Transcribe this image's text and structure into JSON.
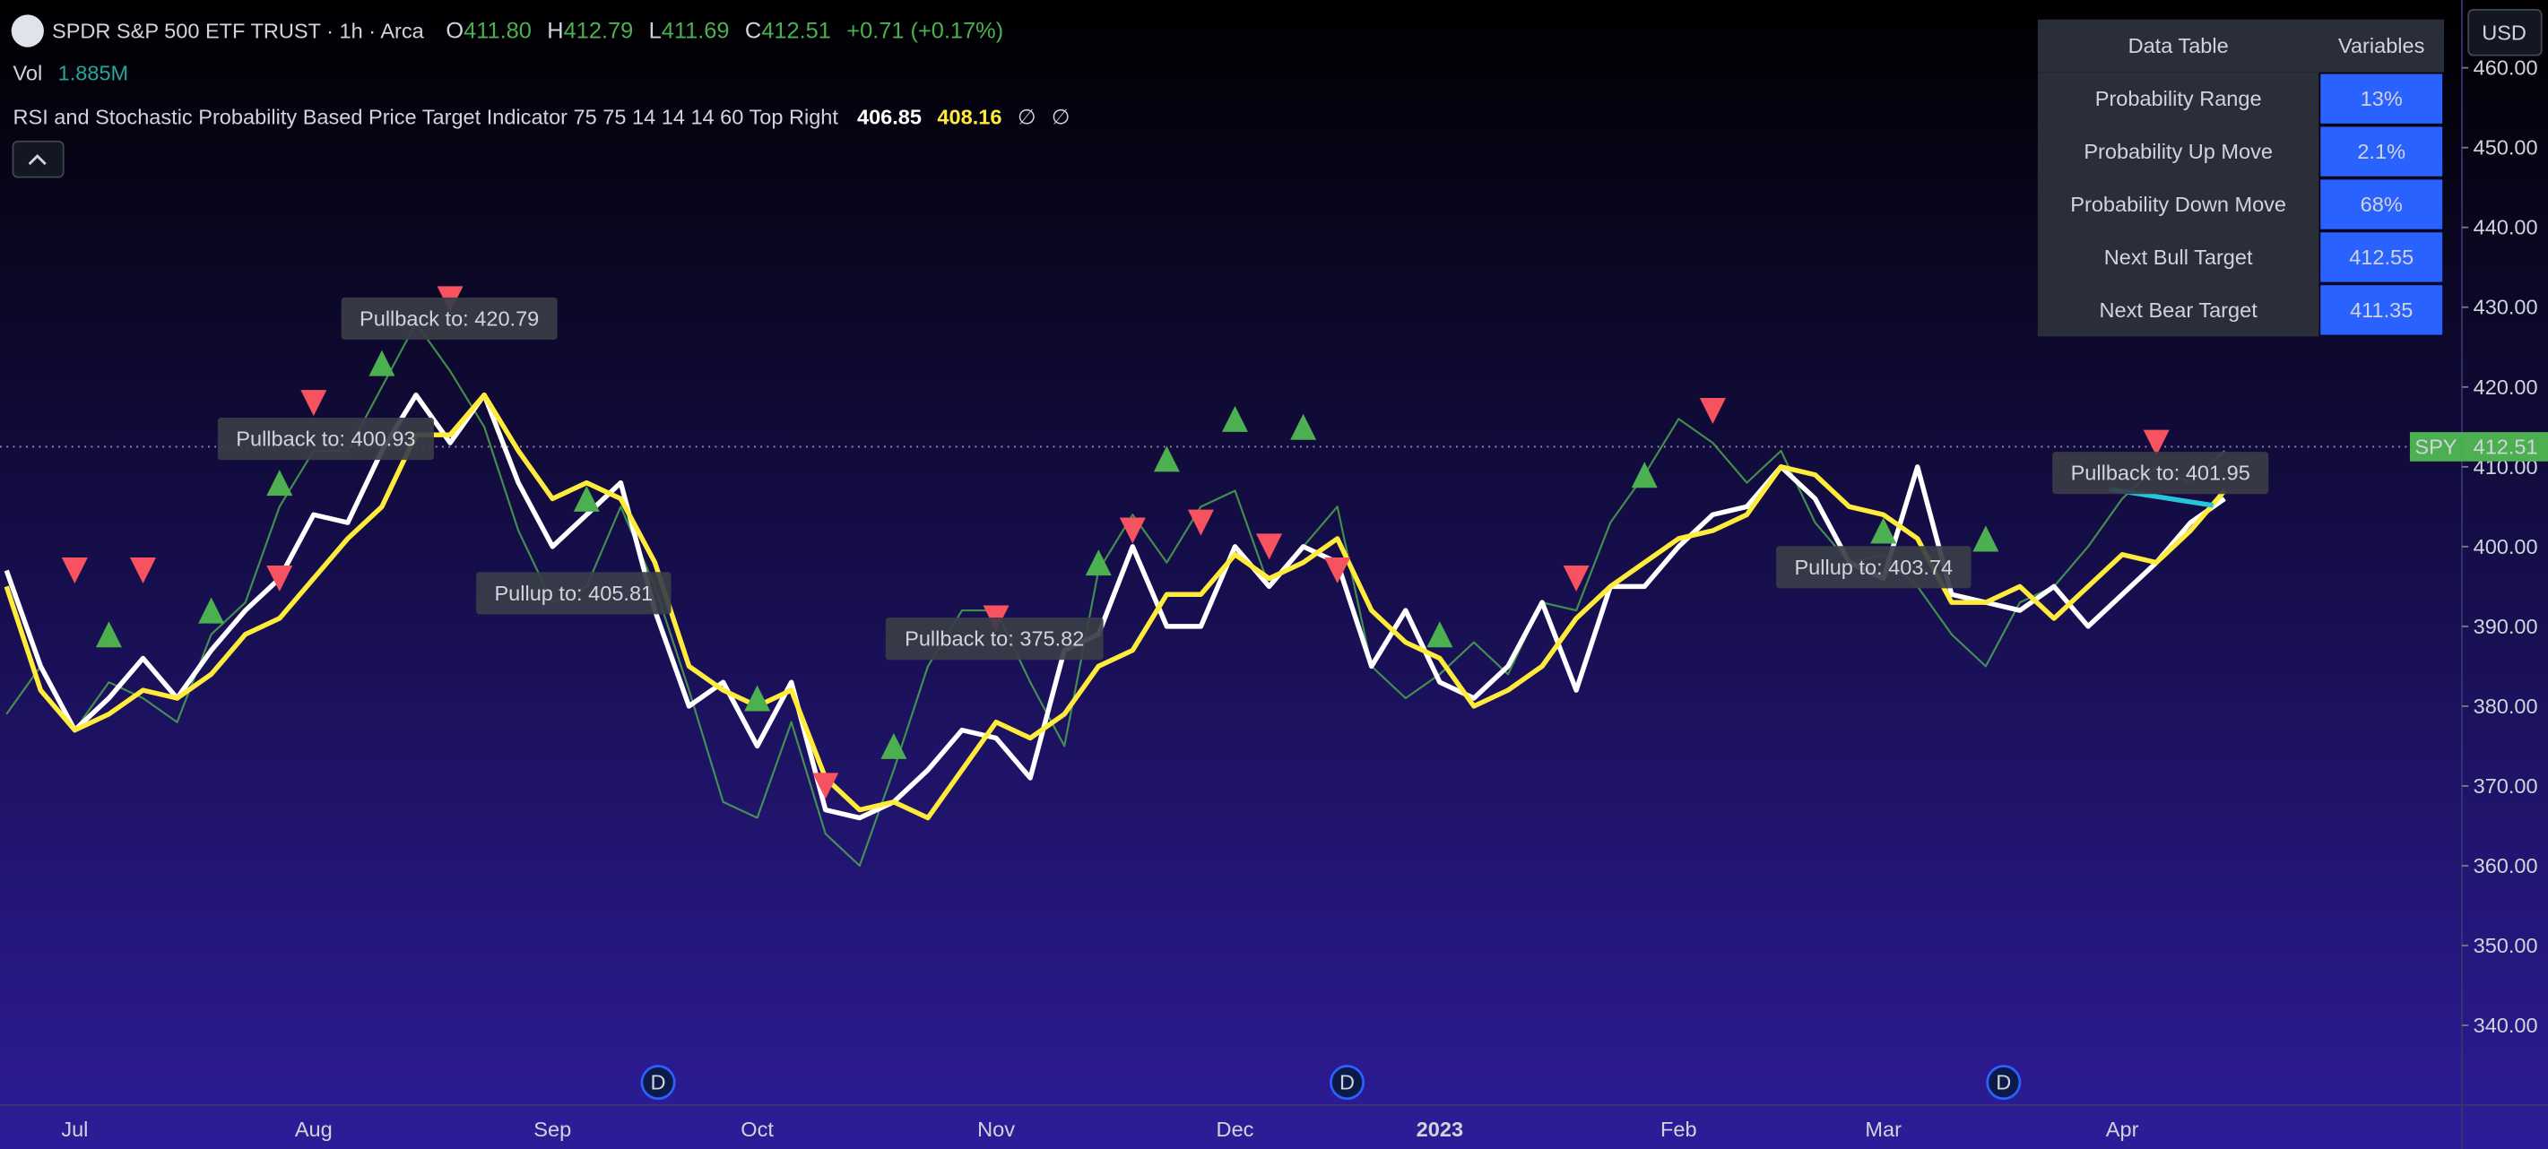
{
  "header": {
    "title": "SPDR S&P 500 ETF TRUST · 1h · Arca",
    "ohlc": [
      [
        "O",
        "411.80"
      ],
      [
        "H",
        "412.79"
      ],
      [
        "L",
        "411.69"
      ],
      [
        "C",
        "412.51"
      ]
    ],
    "change": "+0.71 (+0.17%)",
    "volume_label": "Vol",
    "volume": "1.885M",
    "indicator": "RSI and Stochastic Probability Based Price Target Indicator 75 75 14 14 14 60 Top Right",
    "indicator_values": [
      "406.85",
      "408.16",
      "∅",
      "∅"
    ]
  },
  "price_scale": {
    "currency": "USD",
    "symbol": "SPY"
  },
  "data_table": {
    "headers": [
      "Data Table",
      "Variables"
    ],
    "rows": [
      [
        "Probability Range",
        "13%"
      ],
      [
        "Probability Up Move",
        "2.1%"
      ],
      [
        "Probability Down Move",
        "68%"
      ],
      [
        "Next Bull Target",
        "412.55"
      ],
      [
        "Next Bear Target",
        "411.35"
      ]
    ]
  },
  "chart_data": {
    "type": "line",
    "categories": [
      null,
      null,
      "Jul",
      null,
      null,
      null,
      null,
      null,
      null,
      "Aug",
      null,
      null,
      null,
      null,
      null,
      null,
      "Sep",
      null,
      null,
      null,
      null,
      null,
      "Oct",
      null,
      null,
      null,
      null,
      null,
      null,
      "Nov",
      null,
      null,
      null,
      null,
      null,
      null,
      "Dec",
      null,
      null,
      null,
      null,
      null,
      "2023",
      null,
      null,
      null,
      null,
      null,
      null,
      "Feb",
      null,
      null,
      null,
      null,
      null,
      "Mar",
      null,
      null,
      null,
      null,
      null,
      null,
      "Apr",
      null,
      null,
      null
    ],
    "series": [
      {
        "color": "#4caf50",
        "values": [
          379,
          385,
          377,
          383,
          381,
          378,
          389,
          393,
          405,
          412,
          412,
          420,
          428,
          422,
          415,
          402,
          393,
          395,
          405,
          395,
          382,
          368,
          366,
          378,
          364,
          360,
          372,
          385,
          392,
          392,
          383,
          375,
          397,
          404,
          398,
          405,
          407,
          395,
          400,
          405,
          385,
          381,
          384,
          388,
          384,
          393,
          392,
          403,
          409,
          416,
          413,
          408,
          412,
          403,
          398,
          399,
          395,
          389,
          385,
          393,
          395,
          400,
          406,
          410,
          408,
          412
        ]
      },
      {
        "color": "#ffffff",
        "values": [
          397,
          385,
          377,
          381,
          386,
          381,
          387,
          392,
          396,
          404,
          403,
          412,
          419,
          413,
          419,
          408,
          400,
          404,
          408,
          392,
          380,
          383,
          375,
          383,
          367,
          366,
          368,
          372,
          377,
          376,
          371,
          387,
          389,
          400,
          390,
          390,
          400,
          395,
          400,
          398,
          385,
          392,
          383,
          381,
          385,
          393,
          382,
          395,
          395,
          400,
          404,
          405,
          410,
          406,
          398,
          396,
          410,
          394,
          393,
          392,
          395,
          390,
          394,
          398,
          403,
          406
        ]
      },
      {
        "color": "#ffeb3b",
        "values": [
          395,
          382,
          377,
          379,
          382,
          381,
          384,
          389,
          391,
          396,
          401,
          405,
          414,
          414,
          419,
          412,
          406,
          408,
          406,
          398,
          385,
          382,
          380,
          382,
          371,
          367,
          368,
          366,
          372,
          378,
          376,
          379,
          385,
          387,
          394,
          394,
          399,
          396,
          398,
          401,
          392,
          388,
          386,
          380,
          382,
          385,
          391,
          395,
          398,
          401,
          402,
          404,
          410,
          409,
          405,
          404,
          401,
          393,
          393,
          395,
          391,
          395,
          399,
          398,
          402,
          407
        ]
      }
    ],
    "markers_up": {
      "color": "#4caf50",
      "values": [
        null,
        null,
        null,
        389,
        null,
        null,
        392,
        null,
        408,
        null,
        null,
        423,
        null,
        null,
        null,
        null,
        null,
        406,
        null,
        null,
        null,
        null,
        381,
        null,
        null,
        null,
        375,
        null,
        null,
        null,
        null,
        null,
        398,
        null,
        411,
        null,
        416,
        null,
        415,
        null,
        null,
        null,
        389,
        null,
        null,
        null,
        null,
        null,
        409,
        null,
        null,
        null,
        null,
        null,
        null,
        402,
        null,
        null,
        401,
        null,
        null,
        null,
        null,
        null,
        null,
        null
      ]
    },
    "markers_down": {
      "color": "#f7525f",
      "values": [
        null,
        null,
        397,
        null,
        397,
        null,
        null,
        null,
        396,
        418,
        null,
        null,
        null,
        431,
        null,
        null,
        null,
        null,
        null,
        null,
        null,
        null,
        null,
        null,
        370,
        null,
        null,
        null,
        null,
        391,
        null,
        null,
        null,
        402,
        null,
        403,
        null,
        400,
        null,
        397,
        null,
        null,
        null,
        null,
        null,
        null,
        396,
        null,
        null,
        null,
        417,
        null,
        null,
        null,
        null,
        null,
        null,
        null,
        null,
        null,
        null,
        null,
        null,
        413,
        null,
        null
      ]
    },
    "annotations": [
      "Pullback to: 420.79",
      "Pullback to: 400.93",
      "Pullup to: 405.81",
      "Pullback to: 375.82",
      "Pullup to: 403.74",
      "Pullback to: 401.95"
    ],
    "dividend_markers": [
      "D",
      "D",
      "D"
    ],
    "last_price": 412.51,
    "ylim": [
      330,
      468.5
    ],
    "yticks": [
      {
        "value": 340,
        "label": "340.00"
      },
      {
        "value": 350,
        "label": "350.00"
      },
      {
        "value": 360,
        "label": "360.00"
      },
      {
        "value": 370,
        "label": "370.00"
      },
      {
        "value": 380,
        "label": "380.00"
      },
      {
        "value": 390,
        "label": "390.00"
      },
      {
        "value": 400,
        "label": "400.00"
      },
      {
        "value": 410,
        "label": "410.00"
      },
      {
        "value": 420,
        "label": "420.00"
      },
      {
        "value": 430,
        "label": "430.00"
      },
      {
        "value": 440,
        "label": "440.00"
      },
      {
        "value": 450,
        "label": "450.00"
      },
      {
        "value": 460,
        "label": "460.00"
      }
    ],
    "grid": false
  }
}
